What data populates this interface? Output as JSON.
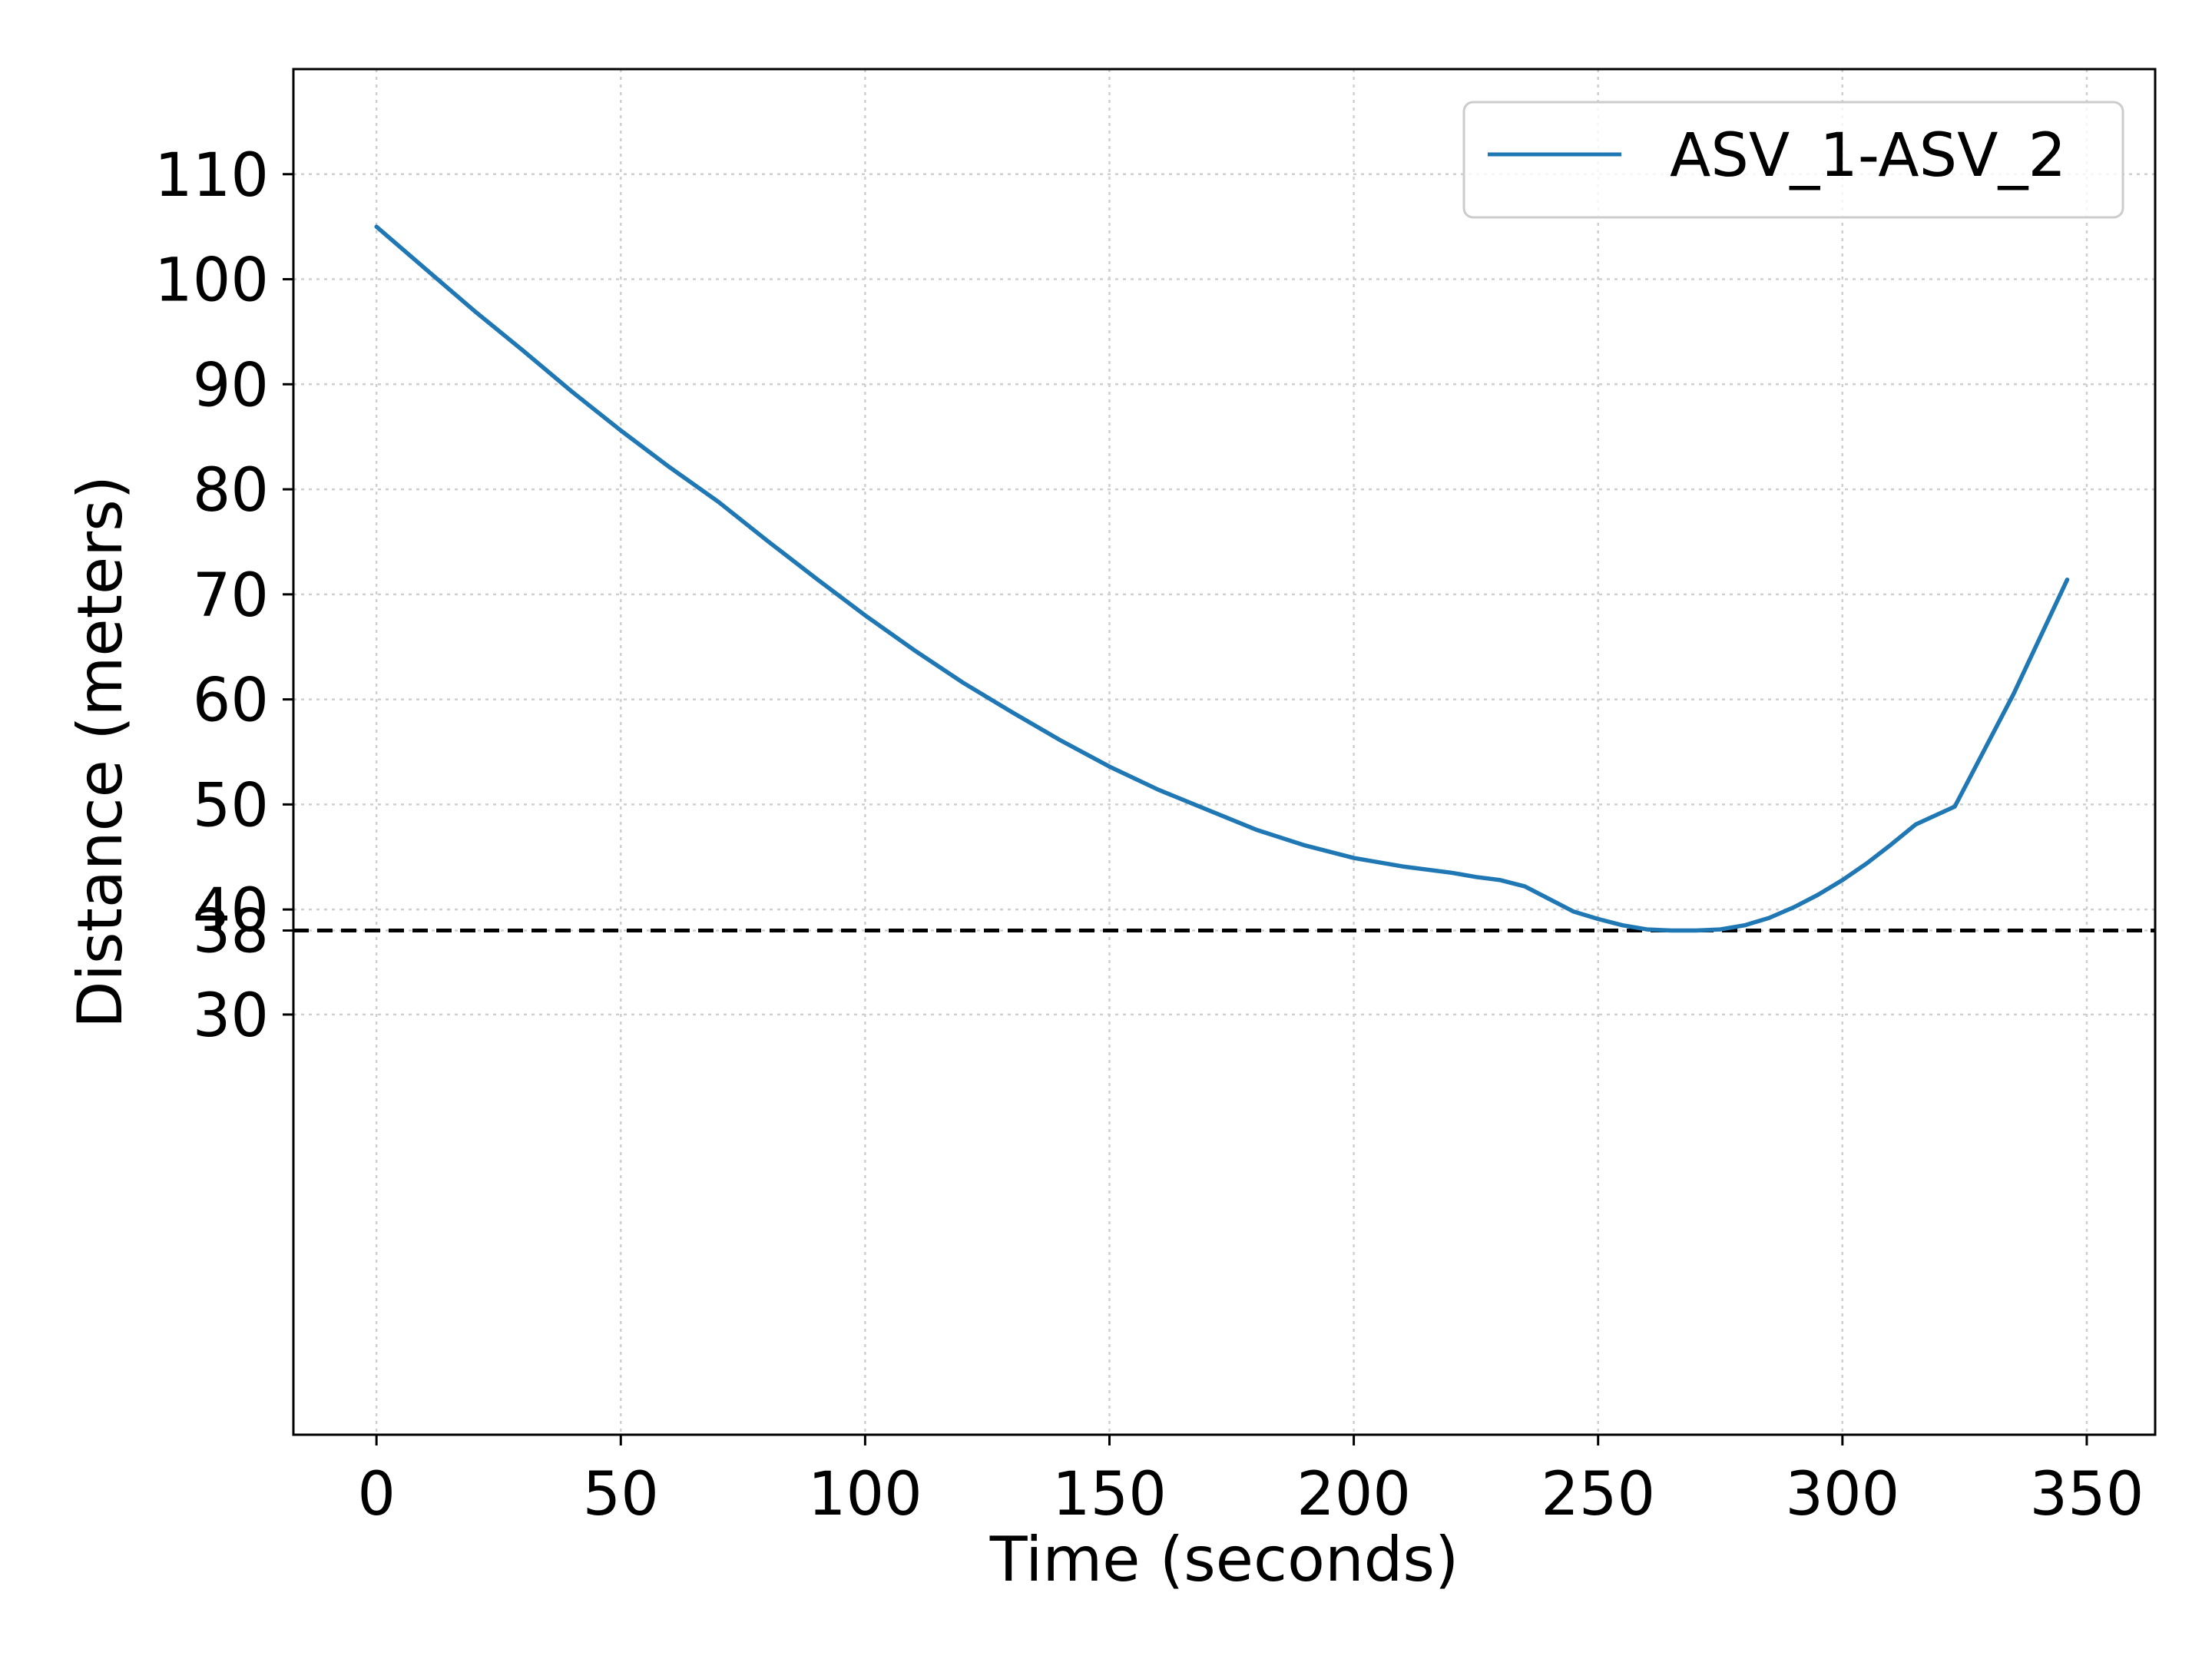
{
  "chart_data": {
    "type": "line",
    "title": "",
    "xlabel": "Time (seconds)",
    "ylabel": "Distance (meters)",
    "xlim": [
      -17,
      364
    ],
    "ylim": [
      -10,
      120
    ],
    "xticks": [
      0,
      50,
      100,
      150,
      200,
      250,
      300,
      350
    ],
    "xtick_labels": [
      "0",
      "50",
      "100",
      "150",
      "200",
      "250",
      "300",
      "350"
    ],
    "yticks": [
      30,
      38,
      40,
      50,
      60,
      70,
      80,
      90,
      100,
      110
    ],
    "ytick_labels": [
      "30",
      "38",
      "40",
      "50",
      "60",
      "70",
      "80",
      "90",
      "100",
      "110"
    ],
    "grid": true,
    "legend_position": "top-right",
    "series": [
      {
        "name": "ASV_1-ASV_2",
        "color": "#1f77b4",
        "x": [
          0,
          10,
          20,
          30,
          40,
          50,
          60,
          70,
          80,
          90,
          100,
          110,
          120,
          130,
          140,
          150,
          160,
          170,
          180,
          190,
          200,
          210,
          220,
          225,
          230,
          235,
          240,
          245,
          250,
          255,
          260,
          265,
          270,
          275,
          280,
          285,
          290,
          295,
          300,
          305,
          310,
          315,
          323,
          335,
          346
        ],
        "y": [
          105,
          101,
          97,
          93.2,
          89.3,
          85.6,
          82.1,
          78.8,
          75.1,
          71.5,
          68,
          64.7,
          61.6,
          58.8,
          56.1,
          53.6,
          51.4,
          49.5,
          47.6,
          46.1,
          44.9,
          44.1,
          43.5,
          43.1,
          42.8,
          42.2,
          41,
          39.8,
          39.1,
          38.5,
          38.1,
          38,
          38,
          38.1,
          38.5,
          39.2,
          40.2,
          41.4,
          42.8,
          44.4,
          46.2,
          48.1,
          49.8,
          60.5,
          71.4
        ]
      }
    ],
    "reference_lines": [
      {
        "type": "horizontal",
        "y": 38,
        "style": "dashed",
        "color": "#000000"
      }
    ]
  }
}
